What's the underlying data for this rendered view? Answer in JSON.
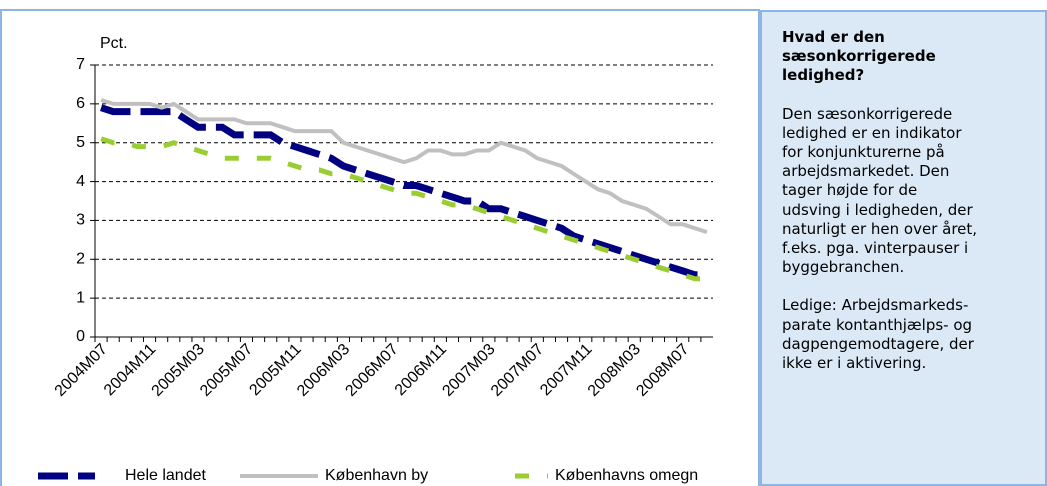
{
  "chart_data": {
    "type": "line",
    "ylabel": "Pct.",
    "categories": [
      "2004M07",
      null,
      null,
      null,
      "2004M11",
      null,
      null,
      null,
      "2005M03",
      null,
      null,
      null,
      "2005M07",
      null,
      null,
      null,
      "2005M11",
      null,
      null,
      null,
      "2006M03",
      null,
      null,
      null,
      "2006M07",
      null,
      null,
      null,
      "2006M11",
      null,
      null,
      null,
      "2007M03",
      null,
      null,
      null,
      "2007M07",
      null,
      null,
      null,
      "2007M11",
      null,
      null,
      null,
      "2008M03",
      null,
      null,
      null,
      "2008M07",
      null,
      null
    ],
    "series": [
      {
        "name": "Hele landet",
        "color": "#000080",
        "style": "dashed-long",
        "values": [
          5.9,
          5.8,
          5.8,
          5.8,
          5.8,
          5.8,
          5.8,
          5.6,
          5.4,
          5.4,
          5.4,
          5.2,
          5.2,
          5.2,
          5.2,
          5.0,
          4.9,
          4.8,
          4.7,
          4.6,
          4.4,
          4.3,
          4.2,
          4.1,
          4.0,
          3.9,
          3.9,
          3.8,
          3.7,
          3.6,
          3.5,
          3.5,
          3.3,
          3.3,
          3.2,
          3.1,
          3.0,
          2.9,
          2.8,
          2.6,
          2.5,
          2.4,
          2.3,
          2.2,
          2.1,
          2.0,
          1.9,
          1.8,
          1.7,
          1.6,
          1.6
        ]
      },
      {
        "name": "København by",
        "color": "#c0c0c0",
        "style": "solid",
        "values": [
          6.1,
          6.0,
          6.0,
          6.0,
          6.0,
          5.9,
          6.0,
          5.8,
          5.6,
          5.6,
          5.6,
          5.6,
          5.5,
          5.5,
          5.5,
          5.4,
          5.3,
          5.3,
          5.3,
          5.3,
          5.0,
          4.9,
          4.8,
          4.7,
          4.6,
          4.5,
          4.6,
          4.8,
          4.8,
          4.7,
          4.7,
          4.8,
          4.8,
          5.0,
          4.9,
          4.8,
          4.6,
          4.5,
          4.4,
          4.2,
          4.0,
          3.8,
          3.7,
          3.5,
          3.4,
          3.3,
          3.1,
          2.9,
          2.9,
          2.8,
          2.7
        ]
      },
      {
        "name": "Københavns omegn",
        "color": "#9acd32",
        "style": "dashed-short",
        "values": [
          5.1,
          5.0,
          5.0,
          4.9,
          4.9,
          4.9,
          5.0,
          4.9,
          4.8,
          4.7,
          4.6,
          4.6,
          4.6,
          4.6,
          4.6,
          4.5,
          4.4,
          4.3,
          4.3,
          4.2,
          4.2,
          4.1,
          4.0,
          3.9,
          3.8,
          3.7,
          3.7,
          3.6,
          3.5,
          3.4,
          3.4,
          3.3,
          3.2,
          3.1,
          3.0,
          2.9,
          2.8,
          2.7,
          2.6,
          2.5,
          2.4,
          2.3,
          2.2,
          2.1,
          2.0,
          1.9,
          1.8,
          1.7,
          1.6,
          1.5,
          1.5
        ]
      }
    ],
    "ylim": [
      0,
      7
    ],
    "yticks": [
      0,
      1,
      2,
      3,
      4,
      5,
      6,
      7
    ],
    "grid": true
  },
  "sidebar": {
    "title": [
      "Hvad er den",
      "sæsonkorrigerede",
      "ledighed?"
    ],
    "paragraphs": [
      [
        "Den sæsonkorrigerede",
        "ledighed er en indikator",
        "for konjunkturerne på",
        "arbejdsmarkedet. Den",
        "tager højde for de",
        "udsving i ledigheden, der",
        "naturligt er hen over året,",
        "f.eks. pga. vinterpauser i",
        "byggebranchen."
      ],
      [
        "Ledige: Arbejdsmarkeds-",
        "parate kontanthjælps- og",
        "dagpengemodtagere, der",
        "ikke er i aktivering."
      ]
    ]
  }
}
